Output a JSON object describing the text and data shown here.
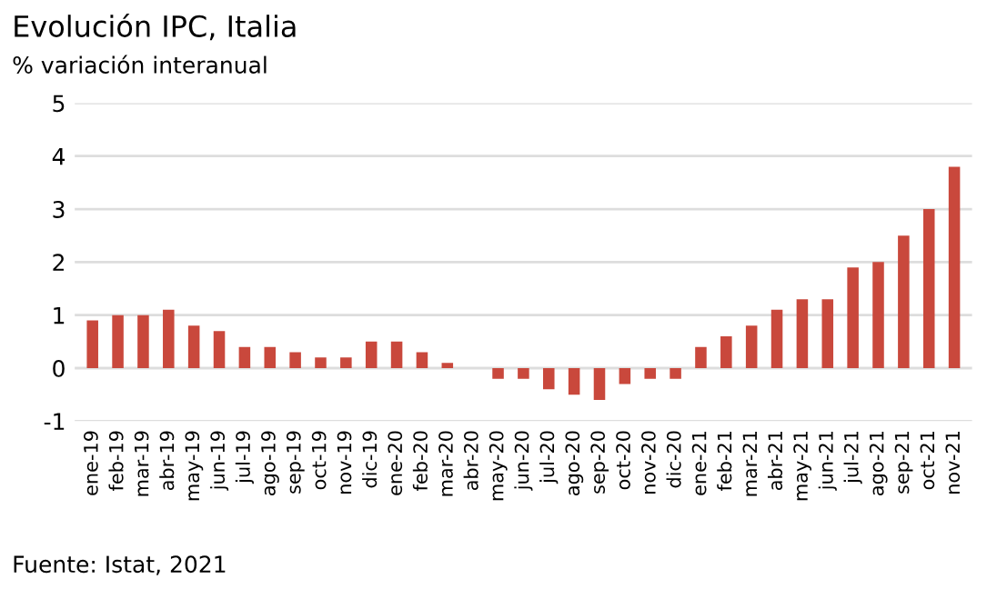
{
  "chart_data": {
    "type": "bar",
    "title": "Evolución IPC, Italia",
    "subtitle": "% variación interanual",
    "categories": [
      "ene-19",
      "feb-19",
      "mar-19",
      "abr-19",
      "may-19",
      "jun-19",
      "jul-19",
      "ago-19",
      "sep-19",
      "oct-19",
      "nov-19",
      "dic-19",
      "ene-20",
      "feb-20",
      "mar-20",
      "abr-20",
      "may-20",
      "jun-20",
      "jul-20",
      "ago-20",
      "sep-20",
      "oct-20",
      "nov-20",
      "dic-20",
      "ene-21",
      "feb-21",
      "mar-21",
      "abr-21",
      "may-21",
      "jun-21",
      "jul-21",
      "ago-21",
      "sep-21",
      "oct-21",
      "nov-21"
    ],
    "values": [
      0.9,
      1.0,
      1.0,
      1.1,
      0.8,
      0.7,
      0.4,
      0.4,
      0.3,
      0.2,
      0.2,
      0.5,
      0.5,
      0.3,
      0.1,
      0,
      -0.2,
      -0.2,
      -0.4,
      -0.5,
      -0.6,
      -0.3,
      -0.2,
      -0.2,
      0.4,
      0.6,
      0.8,
      1.1,
      1.3,
      1.3,
      1.9,
      2.0,
      2.5,
      3.0,
      3.8
    ],
    "color": "#c9483c",
    "ylim": [
      -1,
      5
    ],
    "yticks": [
      {
        "value": -1,
        "label": "-1"
      },
      0,
      1,
      2,
      3,
      4,
      5
    ],
    "grid": "y",
    "annotations": [
      "Fuente: Istat, 2021"
    ]
  }
}
